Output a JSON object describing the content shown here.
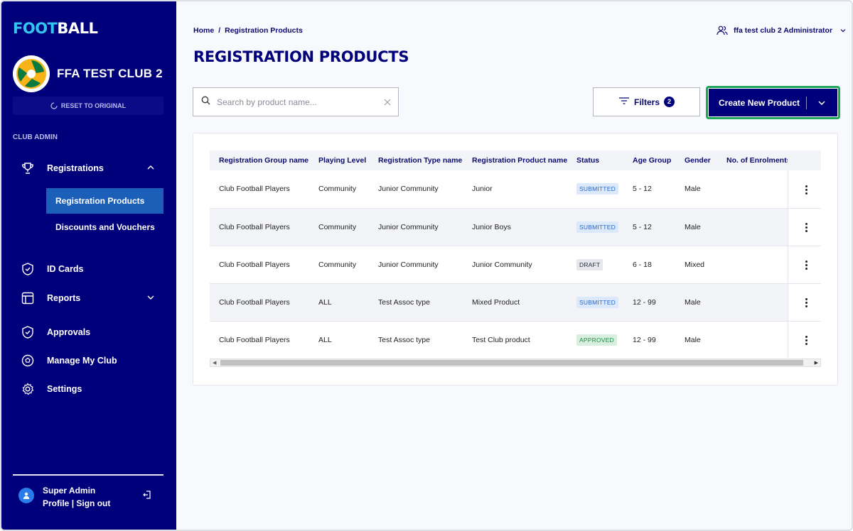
{
  "brand": {
    "logo_part1": "FOOT",
    "logo_part2": "BALL"
  },
  "club": {
    "name": "FFA TEST CLUB 2",
    "reset_label": "RESET TO ORIGINAL"
  },
  "sidebar": {
    "section_label": "CLUB ADMIN",
    "registrations_label": "Registrations",
    "sub_items": [
      {
        "label": "Registration Products"
      },
      {
        "label": "Discounts and Vouchers"
      }
    ],
    "id_cards_label": "ID Cards",
    "reports_label": "Reports",
    "approvals_label": "Approvals",
    "manage_club_label": "Manage My Club",
    "settings_label": "Settings"
  },
  "user": {
    "name": "Super Admin",
    "profile_label": "Profile",
    "separator": "|",
    "signout_label": "Sign out"
  },
  "header": {
    "breadcrumb_home": "Home",
    "breadcrumb_sep": "/",
    "breadcrumb_current": "Registration Products",
    "admin_label": "ffa test club 2 Administrator",
    "page_title": "REGISTRATION PRODUCTS"
  },
  "toolbar": {
    "search_placeholder": "Search by product name...",
    "filters_label": "Filters",
    "filters_count": "2",
    "create_label": "Create New Product"
  },
  "table": {
    "columns": [
      "Registration Group name",
      "Playing Level",
      "Registration Type name",
      "Registration Product name",
      "Status",
      "Age Group",
      "Gender",
      "No. of Enrolments"
    ],
    "rows": [
      {
        "group": "Club Football Players",
        "level": "Community",
        "type": "Junior Community",
        "product": "Junior",
        "status": "SUBMITTED",
        "age": "5 - 12",
        "gender": "Male",
        "enrolments": ""
      },
      {
        "group": "Club Football Players",
        "level": "Community",
        "type": "Junior Community",
        "product": "Junior Boys",
        "status": "SUBMITTED",
        "age": "5 - 12",
        "gender": "Male",
        "enrolments": ""
      },
      {
        "group": "Club Football Players",
        "level": "Community",
        "type": "Junior Community",
        "product": "Junior Community",
        "status": "DRAFT",
        "age": "6 - 18",
        "gender": "Mixed",
        "enrolments": ""
      },
      {
        "group": "Club Football Players",
        "level": "ALL",
        "type": "Test Assoc type",
        "product": "Mixed Product",
        "status": "SUBMITTED",
        "age": "12 - 99",
        "gender": "Male",
        "enrolments": ""
      },
      {
        "group": "Club Football Players",
        "level": "ALL",
        "type": "Test Assoc type",
        "product": "Test Club product",
        "status": "APPROVED",
        "age": "12 - 99",
        "gender": "Male",
        "enrolments": ""
      }
    ]
  },
  "status_colors": {
    "SUBMITTED": {
      "bg": "#dbe9fb",
      "fg": "#2a68c8"
    },
    "DRAFT": {
      "bg": "#e6e7ec",
      "fg": "#2b2d3a"
    },
    "APPROVED": {
      "bg": "#d8efdf",
      "fg": "#1f8a46"
    }
  },
  "colors": {
    "sidebar_bg": "#00007a",
    "accent": "#1b5fb8",
    "highlight": "#1fa55a"
  }
}
